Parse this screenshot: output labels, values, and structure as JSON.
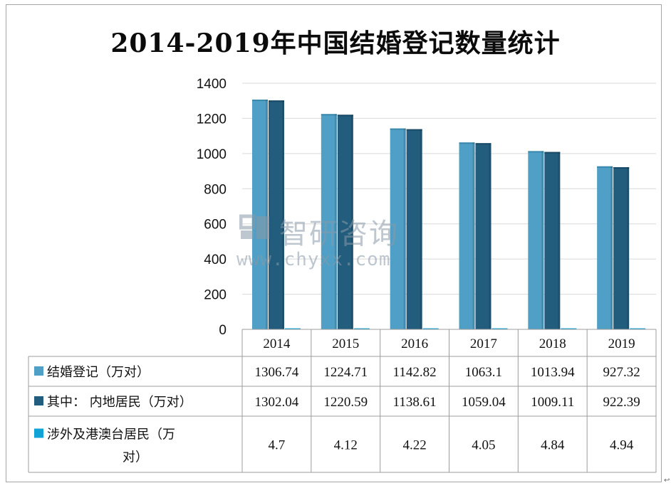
{
  "chart_data": {
    "type": "bar",
    "title": "2014-2019年中国结婚登记数量统计",
    "categories": [
      "2014",
      "2015",
      "2016",
      "2017",
      "2018",
      "2019"
    ],
    "series": [
      {
        "name": "结婚登记（万对）",
        "values": [
          1306.74,
          1224.71,
          1142.82,
          1063.1,
          1013.94,
          927.32
        ],
        "display": [
          "1306.74",
          "1224.71",
          "1142.82",
          "1063.1",
          "1013.94",
          "927.32"
        ],
        "color": "#4f9fc6"
      },
      {
        "name": "其中： 内地居民（万对）",
        "values": [
          1302.04,
          1220.59,
          1138.61,
          1059.04,
          1009.11,
          922.39
        ],
        "display": [
          "1302.04",
          "1220.59",
          "1138.61",
          "1059.04",
          "1009.11",
          "922.39"
        ],
        "color": "#235d7e"
      },
      {
        "name": "涉外及港澳台居民（万对）",
        "values": [
          4.7,
          4.12,
          4.22,
          4.05,
          4.84,
          4.94
        ],
        "display": [
          "4.7",
          "4.12",
          "4.22",
          "4.05",
          "4.84",
          "4.94"
        ],
        "color": "#12a3d6"
      }
    ],
    "ylim": [
      0,
      1400
    ],
    "yticks": [
      "0",
      "200",
      "400",
      "600",
      "800",
      "1000",
      "1200",
      "1400"
    ],
    "grid": true,
    "legend": "data-table"
  },
  "watermark": {
    "text": "智研咨询",
    "url": "www.chyxx.com"
  },
  "corner_mark": "↩"
}
